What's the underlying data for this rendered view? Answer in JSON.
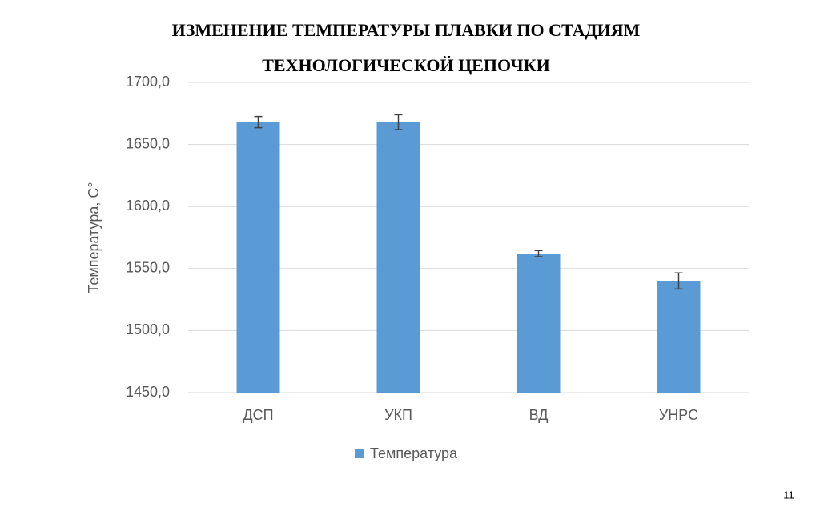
{
  "chart_data": {
    "type": "bar",
    "title_lines": [
      "ИЗМЕНЕНИЕ ТЕМПЕРАТУРЫ ПЛАВКИ  ПО СТАДИЯМ",
      "ТЕХНОЛОГИЧЕСКОЙ ЦЕПОЧКИ"
    ],
    "y_label": "Температура, С°",
    "categories": [
      "ДСП",
      "УКП",
      "ВД",
      "УНРС"
    ],
    "series": [
      {
        "name": "Температура",
        "color": "#5b9bd5",
        "values": [
          1668,
          1668,
          1562,
          1540
        ],
        "errors": [
          4.5,
          6,
          2.5,
          6.5
        ]
      }
    ],
    "ylim": [
      1450,
      1700
    ],
    "yticks": [
      {
        "value": 1450,
        "label": "1450,0"
      },
      {
        "value": 1500,
        "label": "1500,0"
      },
      {
        "value": 1550,
        "label": "1550,0"
      },
      {
        "value": 1600,
        "label": "1600,0"
      },
      {
        "value": 1650,
        "label": "1650,0"
      },
      {
        "value": 1700,
        "label": "1700,0"
      }
    ],
    "grid": true,
    "legend": "bottom"
  },
  "page_number": "11"
}
